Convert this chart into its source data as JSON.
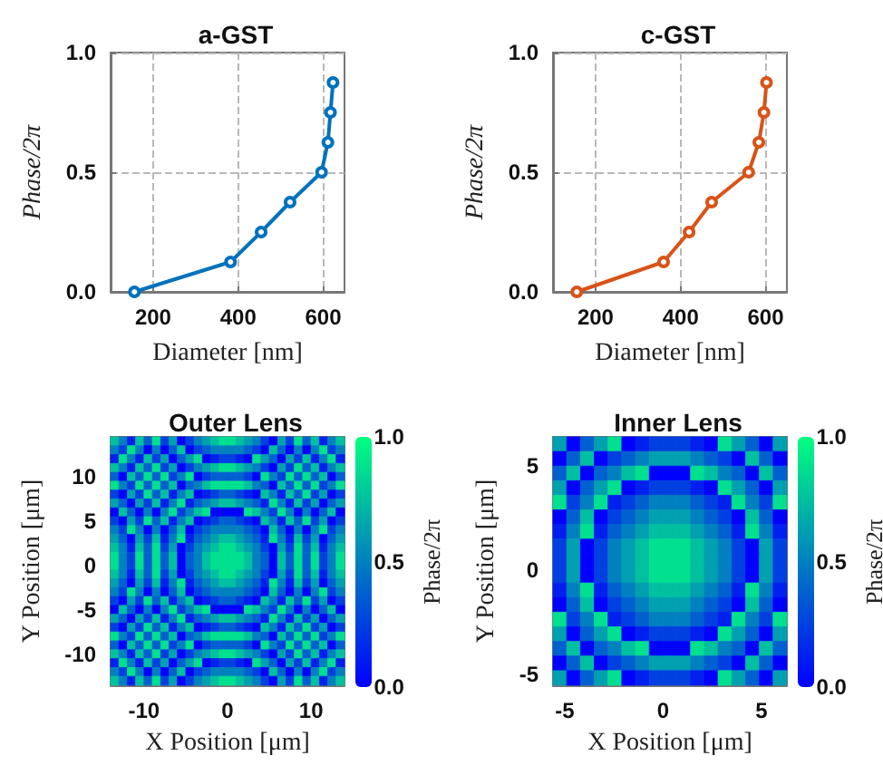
{
  "chart_data": [
    {
      "type": "line",
      "title": "a-GST",
      "xlabel": "Diameter [nm]",
      "ylabel": "Phase/2π",
      "color": "#0072bd",
      "x": [
        156,
        382,
        454,
        522,
        596,
        611,
        617,
        623
      ],
      "values": [
        0,
        0.125,
        0.25,
        0.375,
        0.5,
        0.625,
        0.75,
        0.875
      ],
      "xlim": [
        100,
        650
      ],
      "xticks": [
        200,
        400,
        600
      ],
      "ylim": [
        0,
        1
      ],
      "yticks": [
        {
          "value": 0,
          "label": "0.0"
        },
        {
          "value": 0.5,
          "label": "0.5"
        },
        {
          "value": 1,
          "label": "1.0"
        }
      ],
      "grid": true,
      "marker": "circle",
      "line_style": "solid"
    },
    {
      "type": "line",
      "title": "c-GST",
      "xlabel": "Diameter [nm]",
      "ylabel": "Phase/2π",
      "color": "#d95319",
      "x": [
        156,
        360,
        420,
        473,
        560,
        584,
        596,
        602
      ],
      "values": [
        0,
        0.125,
        0.25,
        0.375,
        0.5,
        0.625,
        0.75,
        0.875
      ],
      "xlim": [
        100,
        650
      ],
      "xticks": [
        200,
        400,
        600
      ],
      "ylim": [
        0,
        1
      ],
      "yticks": [
        {
          "value": 0,
          "label": "0.0"
        },
        {
          "value": 0.5,
          "label": "0.5"
        },
        {
          "value": 1,
          "label": "1.0"
        }
      ],
      "grid": true,
      "marker": "circle",
      "line_style": "solid"
    },
    {
      "type": "heatmap",
      "title": "Outer Lens",
      "xlabel": "X Position [μm]",
      "ylabel": "Y Position [μm]",
      "clabel": "Phase/2π",
      "x": [
        -13.5,
        -12.5,
        -11.5,
        -10.5,
        -9.5,
        -8.5,
        -7.5,
        -6.5,
        -5.5,
        -4.5,
        -3.5,
        -2.5,
        -1.5,
        -0.5,
        0.5,
        1.5,
        2.5,
        3.5,
        4.5,
        5.5,
        6.5,
        7.5,
        8.5,
        9.5,
        10.5,
        11.5,
        12.5,
        13.5
      ],
      "y": [
        14,
        13,
        12,
        11,
        10,
        9,
        8,
        7,
        6,
        5,
        4,
        3,
        2,
        1,
        0,
        -1,
        -2,
        -3,
        -4,
        -5,
        -6,
        -7,
        -8,
        -9,
        -10,
        -11,
        -12,
        -13
      ],
      "cells": [
        [
          0.75,
          0.5,
          0.125,
          0.75,
          0.375,
          0.875,
          0.25,
          0.625,
          0,
          0.25,
          0.5,
          0.625,
          0.75,
          0.875,
          0.875,
          0.75,
          0.625,
          0.5,
          0.25,
          0,
          0.625,
          0.25,
          0.875,
          0.375,
          0.75,
          0.125,
          0.5,
          0.75
        ],
        [
          0.5,
          0.25,
          0.875,
          0.5,
          0,
          0.5,
          0,
          0.375,
          0.75,
          0,
          0.25,
          0.375,
          0.5,
          0.5,
          0.5,
          0.5,
          0.375,
          0.25,
          0,
          0.75,
          0.375,
          0,
          0.5,
          0,
          0.5,
          0.875,
          0.25,
          0.5
        ],
        [
          0.125,
          0.875,
          0.5,
          0.125,
          0.75,
          0.25,
          0.625,
          0,
          0.375,
          0.625,
          0.875,
          0,
          0.125,
          0.25,
          0.25,
          0.125,
          0,
          0.875,
          0.625,
          0.375,
          0,
          0.625,
          0.25,
          0.75,
          0.125,
          0.5,
          0.875,
          0.125
        ],
        [
          0.75,
          0.5,
          0.125,
          0.75,
          0.375,
          0.875,
          0.25,
          0.625,
          0,
          0.25,
          0.5,
          0.625,
          0.75,
          0.875,
          0.875,
          0.75,
          0.625,
          0.5,
          0.25,
          0,
          0.625,
          0.25,
          0.875,
          0.375,
          0.75,
          0.125,
          0.5,
          0.75
        ],
        [
          0.375,
          0,
          0.75,
          0.375,
          0.875,
          0.375,
          0.875,
          0.25,
          0.5,
          0.875,
          0,
          0.25,
          0.375,
          0.375,
          0.375,
          0.375,
          0.25,
          0,
          0.875,
          0.5,
          0.25,
          0.875,
          0.375,
          0.875,
          0.375,
          0.75,
          0,
          0.375
        ],
        [
          0.875,
          0.5,
          0.25,
          0.875,
          0.375,
          0.875,
          0.375,
          0.75,
          0,
          0.375,
          0.5,
          0.75,
          0.875,
          0.875,
          0.875,
          0.875,
          0.75,
          0.5,
          0.375,
          0,
          0.75,
          0.375,
          0.875,
          0.375,
          0.875,
          0.25,
          0.5,
          0.875
        ],
        [
          0.25,
          0,
          0.625,
          0.25,
          0.875,
          0.375,
          0.75,
          0.125,
          0.5,
          0.75,
          0,
          0.125,
          0.25,
          0.375,
          0.375,
          0.25,
          0.125,
          0,
          0.75,
          0.5,
          0.125,
          0.75,
          0.375,
          0.875,
          0.25,
          0.625,
          0,
          0.25
        ],
        [
          0.625,
          0.375,
          0,
          0.625,
          0.25,
          0.75,
          0.125,
          0.5,
          0.875,
          0.125,
          0.375,
          0.5,
          0.625,
          0.75,
          0.75,
          0.625,
          0.5,
          0.375,
          0.125,
          0.875,
          0.5,
          0.125,
          0.75,
          0.25,
          0.625,
          0,
          0.375,
          0.625
        ],
        [
          0,
          0.75,
          0.375,
          0,
          0.5,
          0,
          0.5,
          0.875,
          0.25,
          0.5,
          0.75,
          0.875,
          0,
          0,
          0,
          0,
          0.875,
          0.75,
          0.5,
          0.25,
          0.875,
          0.5,
          0,
          0.5,
          0,
          0.375,
          0.75,
          0
        ],
        [
          0.25,
          0,
          0.625,
          0.25,
          0.875,
          0.375,
          0.75,
          0.125,
          0.5,
          0.75,
          0,
          0.125,
          0.25,
          0.375,
          0.375,
          0.25,
          0.125,
          0,
          0.75,
          0.5,
          0.125,
          0.75,
          0.375,
          0.875,
          0.25,
          0.625,
          0,
          0.25
        ],
        [
          0.5,
          0.25,
          0.875,
          0.5,
          0,
          0.5,
          0,
          0.375,
          0.75,
          0,
          0.25,
          0.375,
          0.5,
          0.5,
          0.5,
          0.5,
          0.375,
          0.25,
          0,
          0.75,
          0.375,
          0,
          0.5,
          0,
          0.5,
          0.875,
          0.25,
          0.5
        ],
        [
          0.625,
          0.375,
          0,
          0.625,
          0.25,
          0.75,
          0.125,
          0.5,
          0.875,
          0.125,
          0.375,
          0.5,
          0.625,
          0.75,
          0.75,
          0.625,
          0.5,
          0.375,
          0.125,
          0.875,
          0.5,
          0.125,
          0.75,
          0.25,
          0.625,
          0,
          0.375,
          0.625
        ],
        [
          0.75,
          0.5,
          0.125,
          0.75,
          0.375,
          0.875,
          0.25,
          0.625,
          0,
          0.25,
          0.5,
          0.625,
          0.75,
          0.875,
          0.875,
          0.75,
          0.625,
          0.5,
          0.25,
          0,
          0.625,
          0.25,
          0.875,
          0.375,
          0.75,
          0.125,
          0.5,
          0.75
        ],
        [
          0.875,
          0.5,
          0.25,
          0.875,
          0.375,
          0.875,
          0.375,
          0.75,
          0,
          0.375,
          0.5,
          0.75,
          0.875,
          0.875,
          0.875,
          0.875,
          0.75,
          0.5,
          0.375,
          0,
          0.75,
          0.375,
          0.875,
          0.375,
          0.875,
          0.25,
          0.5,
          0.875
        ],
        [
          0.875,
          0.5,
          0.25,
          0.875,
          0.375,
          0.875,
          0.375,
          0.75,
          0,
          0.375,
          0.5,
          0.75,
          0.875,
          0.875,
          0.875,
          0.875,
          0.75,
          0.5,
          0.375,
          0,
          0.75,
          0.375,
          0.875,
          0.375,
          0.875,
          0.25,
          0.5,
          0.875
        ],
        [
          0.75,
          0.5,
          0.125,
          0.75,
          0.375,
          0.875,
          0.25,
          0.625,
          0,
          0.25,
          0.5,
          0.625,
          0.75,
          0.875,
          0.875,
          0.75,
          0.625,
          0.5,
          0.25,
          0,
          0.625,
          0.25,
          0.875,
          0.375,
          0.75,
          0.125,
          0.5,
          0.75
        ],
        [
          0.625,
          0.375,
          0,
          0.625,
          0.25,
          0.75,
          0.125,
          0.5,
          0.875,
          0.125,
          0.375,
          0.5,
          0.625,
          0.75,
          0.75,
          0.625,
          0.5,
          0.375,
          0.125,
          0.875,
          0.5,
          0.125,
          0.75,
          0.25,
          0.625,
          0,
          0.375,
          0.625
        ],
        [
          0.5,
          0.25,
          0.875,
          0.5,
          0,
          0.5,
          0,
          0.375,
          0.75,
          0,
          0.25,
          0.375,
          0.5,
          0.5,
          0.5,
          0.5,
          0.375,
          0.25,
          0,
          0.75,
          0.375,
          0,
          0.5,
          0,
          0.5,
          0.875,
          0.25,
          0.5
        ],
        [
          0.25,
          0,
          0.625,
          0.25,
          0.875,
          0.375,
          0.75,
          0.125,
          0.5,
          0.75,
          0,
          0.125,
          0.25,
          0.375,
          0.375,
          0.25,
          0.125,
          0,
          0.75,
          0.5,
          0.125,
          0.75,
          0.375,
          0.875,
          0.25,
          0.625,
          0,
          0.25
        ],
        [
          0,
          0.75,
          0.375,
          0,
          0.5,
          0,
          0.5,
          0.875,
          0.25,
          0.5,
          0.75,
          0.875,
          0,
          0,
          0,
          0,
          0.875,
          0.75,
          0.5,
          0.25,
          0.875,
          0.5,
          0,
          0.5,
          0,
          0.375,
          0.75,
          0
        ],
        [
          0.625,
          0.375,
          0,
          0.625,
          0.25,
          0.75,
          0.125,
          0.5,
          0.875,
          0.125,
          0.375,
          0.5,
          0.625,
          0.75,
          0.75,
          0.625,
          0.5,
          0.375,
          0.125,
          0.875,
          0.5,
          0.125,
          0.75,
          0.25,
          0.625,
          0,
          0.375,
          0.625
        ],
        [
          0.25,
          0,
          0.625,
          0.25,
          0.875,
          0.375,
          0.75,
          0.125,
          0.5,
          0.75,
          0,
          0.125,
          0.25,
          0.375,
          0.375,
          0.25,
          0.125,
          0,
          0.75,
          0.5,
          0.125,
          0.75,
          0.375,
          0.875,
          0.25,
          0.625,
          0,
          0.25
        ],
        [
          0.875,
          0.5,
          0.25,
          0.875,
          0.375,
          0.875,
          0.375,
          0.75,
          0,
          0.375,
          0.5,
          0.75,
          0.875,
          0.875,
          0.875,
          0.875,
          0.75,
          0.5,
          0.375,
          0,
          0.75,
          0.375,
          0.875,
          0.375,
          0.875,
          0.25,
          0.5,
          0.875
        ],
        [
          0.375,
          0,
          0.75,
          0.375,
          0.875,
          0.375,
          0.875,
          0.25,
          0.5,
          0.875,
          0,
          0.25,
          0.375,
          0.375,
          0.375,
          0.375,
          0.25,
          0,
          0.875,
          0.5,
          0.25,
          0.875,
          0.375,
          0.875,
          0.375,
          0.75,
          0,
          0.375
        ],
        [
          0.75,
          0.5,
          0.125,
          0.75,
          0.375,
          0.875,
          0.25,
          0.625,
          0,
          0.25,
          0.5,
          0.625,
          0.75,
          0.875,
          0.875,
          0.75,
          0.625,
          0.5,
          0.25,
          0,
          0.625,
          0.25,
          0.875,
          0.375,
          0.75,
          0.125,
          0.5,
          0.75
        ],
        [
          0.125,
          0.875,
          0.5,
          0.125,
          0.75,
          0.25,
          0.625,
          0,
          0.375,
          0.625,
          0.875,
          0,
          0.125,
          0.25,
          0.25,
          0.125,
          0,
          0.875,
          0.625,
          0.375,
          0,
          0.625,
          0.25,
          0.75,
          0.125,
          0.5,
          0.875,
          0.125
        ],
        [
          0.5,
          0.25,
          0.875,
          0.5,
          0,
          0.5,
          0,
          0.375,
          0.75,
          0,
          0.25,
          0.375,
          0.5,
          0.5,
          0.5,
          0.5,
          0.375,
          0.25,
          0,
          0.75,
          0.375,
          0,
          0.5,
          0,
          0.5,
          0.875,
          0.25,
          0.5
        ],
        [
          0.75,
          0.5,
          0.125,
          0.75,
          0.375,
          0.875,
          0.25,
          0.625,
          0,
          0.25,
          0.5,
          0.625,
          0.75,
          0.875,
          0.875,
          0.75,
          0.625,
          0.5,
          0.25,
          0,
          0.625,
          0.25,
          0.875,
          0.375,
          0.75,
          0.125,
          0.5,
          0.75
        ]
      ],
      "xlim": [
        -14,
        14
      ],
      "xticks": [
        -10,
        0,
        10
      ],
      "ylim": [
        -13.5,
        14.5
      ],
      "yticks": [
        -10,
        -5,
        0,
        5,
        10
      ],
      "clim": [
        0,
        1
      ],
      "cticks": [
        {
          "value": 0,
          "label": "0.0"
        },
        {
          "value": 0.5,
          "label": "0.5"
        },
        {
          "value": 1,
          "label": "1.0"
        }
      ]
    },
    {
      "type": "heatmap",
      "title": "Inner Lens",
      "xlabel": "X Position [μm]",
      "ylabel": "Y Position [μm]",
      "clabel": "Phase/2π",
      "x": [
        -5.25,
        -4.55,
        -3.85,
        -3.15,
        -2.45,
        -1.75,
        -1.05,
        -0.35,
        0.35,
        1.05,
        1.75,
        2.45,
        3.15,
        3.85,
        4.55,
        5.25,
        5.95
      ],
      "y": [
        6.05,
        5.35,
        4.65,
        3.95,
        3.25,
        2.55,
        1.85,
        1.15,
        0.45,
        -0.25,
        -0.95,
        -1.65,
        -2.35,
        -3.05,
        -3.75,
        -4.45,
        -5.15
      ],
      "cells": [
        [
          0.625,
          0,
          0.375,
          0.625,
          0.875,
          0,
          0.125,
          0.25,
          0.25,
          0.25,
          0.125,
          0,
          0.875,
          0.625,
          0.375,
          0,
          0.625
        ],
        [
          0,
          0.375,
          0.75,
          0,
          0.25,
          0.375,
          0.5,
          0.625,
          0.625,
          0.625,
          0.5,
          0.375,
          0.25,
          0,
          0.75,
          0.375,
          0
        ],
        [
          0.375,
          0.75,
          0,
          0.375,
          0.5,
          0.75,
          0.875,
          0,
          0,
          0,
          0.875,
          0.75,
          0.5,
          0.375,
          0,
          0.75,
          0.375
        ],
        [
          0.625,
          0,
          0.375,
          0.625,
          0.875,
          0,
          0.125,
          0.25,
          0.25,
          0.25,
          0.125,
          0,
          0.875,
          0.625,
          0.375,
          0,
          0.625
        ],
        [
          0.875,
          0.25,
          0.5,
          0.875,
          0.125,
          0.25,
          0.375,
          0.5,
          0.5,
          0.5,
          0.375,
          0.25,
          0.125,
          0.875,
          0.5,
          0.25,
          0.875
        ],
        [
          0,
          0.375,
          0.75,
          0,
          0.25,
          0.375,
          0.5,
          0.625,
          0.625,
          0.625,
          0.5,
          0.375,
          0.25,
          0,
          0.75,
          0.375,
          0
        ],
        [
          0.125,
          0.5,
          0.875,
          0.125,
          0.375,
          0.5,
          0.625,
          0.75,
          0.75,
          0.75,
          0.625,
          0.5,
          0.375,
          0.125,
          0.875,
          0.5,
          0.125
        ],
        [
          0.25,
          0.625,
          0,
          0.25,
          0.5,
          0.625,
          0.75,
          0.875,
          0.875,
          0.875,
          0.75,
          0.625,
          0.5,
          0.25,
          0,
          0.625,
          0.25
        ],
        [
          0.25,
          0.625,
          0,
          0.25,
          0.5,
          0.625,
          0.75,
          0.875,
          0.875,
          0.875,
          0.75,
          0.625,
          0.5,
          0.25,
          0,
          0.625,
          0.25
        ],
        [
          0.25,
          0.625,
          0,
          0.25,
          0.5,
          0.625,
          0.75,
          0.875,
          0.875,
          0.875,
          0.75,
          0.625,
          0.5,
          0.25,
          0,
          0.625,
          0.25
        ],
        [
          0.125,
          0.5,
          0.875,
          0.125,
          0.375,
          0.5,
          0.625,
          0.75,
          0.75,
          0.75,
          0.625,
          0.5,
          0.375,
          0.125,
          0.875,
          0.5,
          0.125
        ],
        [
          0,
          0.375,
          0.75,
          0,
          0.25,
          0.375,
          0.5,
          0.625,
          0.625,
          0.625,
          0.5,
          0.375,
          0.25,
          0,
          0.75,
          0.375,
          0
        ],
        [
          0.875,
          0.25,
          0.5,
          0.875,
          0.125,
          0.25,
          0.375,
          0.5,
          0.5,
          0.5,
          0.375,
          0.25,
          0.125,
          0.875,
          0.5,
          0.25,
          0.875
        ],
        [
          0.625,
          0,
          0.375,
          0.625,
          0.875,
          0,
          0.125,
          0.25,
          0.25,
          0.25,
          0.125,
          0,
          0.875,
          0.625,
          0.375,
          0,
          0.625
        ],
        [
          0.375,
          0.75,
          0,
          0.375,
          0.5,
          0.75,
          0.875,
          0,
          0,
          0,
          0.875,
          0.75,
          0.5,
          0.375,
          0,
          0.75,
          0.375
        ],
        [
          0,
          0.375,
          0.75,
          0,
          0.25,
          0.375,
          0.5,
          0.625,
          0.625,
          0.625,
          0.5,
          0.375,
          0.25,
          0,
          0.75,
          0.375,
          0
        ],
        [
          0.625,
          0,
          0.375,
          0.625,
          0.875,
          0,
          0.125,
          0.25,
          0.25,
          0.25,
          0.125,
          0,
          0.875,
          0.625,
          0.375,
          0,
          0.625
        ]
      ],
      "xlim": [
        -5.6,
        6.3
      ],
      "xticks": [
        -5,
        0,
        5
      ],
      "ylim": [
        -5.5,
        6.4
      ],
      "yticks": [
        -5,
        0,
        5
      ],
      "clim": [
        0,
        1
      ],
      "cticks": [
        {
          "value": 0,
          "label": "0.0"
        },
        {
          "value": 0.5,
          "label": "0.5"
        },
        {
          "value": 1,
          "label": "1.0"
        }
      ]
    }
  ]
}
